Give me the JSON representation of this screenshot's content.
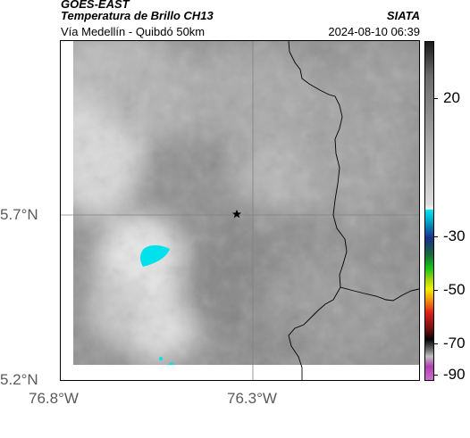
{
  "header": {
    "source": "GOES-EAST",
    "product": "Temperatura de Brillo CH13",
    "agency": "SIATA",
    "region": "Vía Medellín - Quibdó 50km",
    "timestamp": "2024-08-10 06:39"
  },
  "map": {
    "lat_labels": [
      "5.7°N",
      "5.2°N"
    ],
    "lon_labels": [
      "76.8°W",
      "76.3°W"
    ],
    "marker_icon": "star-icon"
  },
  "colorbar": {
    "labels": [
      "20",
      "-30",
      "-50",
      "-70",
      "-90"
    ],
    "colors": {
      "warm": "#1a1a1a",
      "neutral": "#dcdcdc",
      "cyan": "#00e5ee",
      "blue": "#1a2e8c",
      "green": "#16c416",
      "yellow": "#f0f000",
      "red": "#e0201a",
      "black": "#050505",
      "magenta": "#b040b0"
    }
  }
}
